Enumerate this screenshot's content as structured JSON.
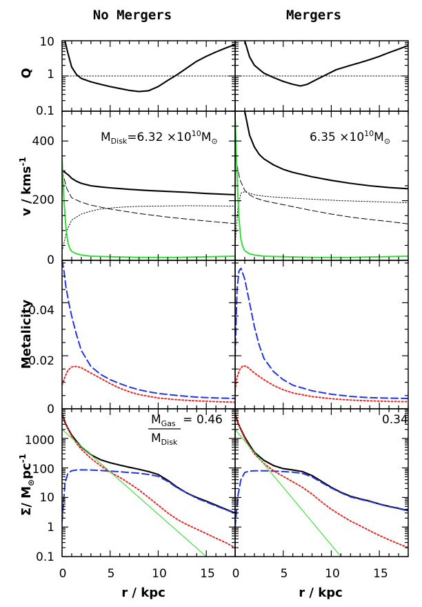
{
  "columns": {
    "left": "No Mergers",
    "right": "Mergers"
  },
  "x_axis": {
    "label": "r / kpc",
    "ticks": [
      "0",
      "5",
      "10",
      "15"
    ]
  },
  "annotations": {
    "mdisk_prefix": "M",
    "mdisk_sub": "Disk",
    "mdisk_left_value": "=6.32 ×10",
    "mdisk_right_value": "6.35 ×10",
    "mdisk_exp": "10",
    "msun_m": "M",
    "sun_symbol": "⊙",
    "ratio_num_m": "M",
    "ratio_num_sub": "Gas",
    "ratio_den_m": "M",
    "ratio_den_sub": "Disk",
    "ratio_eq": "=",
    "ratio_left": "0.46",
    "ratio_right": "0.34"
  },
  "rows": {
    "q": {
      "label": "Q",
      "ticks": [
        "10",
        "1",
        "0.1"
      ]
    },
    "v": {
      "label": "v / kms",
      "label_sup": "-1",
      "ticks": [
        "400",
        "200",
        "0"
      ]
    },
    "met": {
      "label": "Metalicity",
      "ticks": [
        "0.04",
        "0.02",
        "0"
      ]
    },
    "sigma": {
      "label": "Σ/ M",
      "label_sun": "⊙",
      "label_rest": "pc",
      "label_sup": "-1",
      "ticks": [
        "1000",
        "100",
        "10",
        "1",
        "0.1"
      ]
    }
  },
  "colors": {
    "black": "#000000",
    "green": "#33dd33",
    "blue": "#2233dd",
    "red": "#ee2222"
  },
  "chart_data": [
    {
      "type": "line",
      "panel": "Q",
      "column": "No Mergers",
      "ylabel": "Q",
      "xlabel": "r / kpc",
      "xlim": [
        0,
        18
      ],
      "ylim": [
        0.1,
        10
      ],
      "yscale": "log",
      "series": [
        {
          "style": "solid",
          "color": "#000000",
          "x": [
            0.3,
            0.6,
            1,
            1.5,
            2,
            3,
            4,
            5,
            6,
            7,
            8,
            9,
            10,
            11,
            12,
            13,
            14,
            15,
            16,
            17,
            18
          ],
          "y": [
            10,
            4.5,
            1.8,
            1.1,
            0.85,
            0.68,
            0.58,
            0.5,
            0.44,
            0.39,
            0.36,
            0.38,
            0.5,
            0.75,
            1.1,
            1.7,
            2.6,
            3.6,
            4.8,
            6.2,
            7.8
          ]
        },
        {
          "style": "dotted",
          "color": "#000000",
          "x": [
            0,
            18
          ],
          "y": [
            1,
            1
          ]
        }
      ]
    },
    {
      "type": "line",
      "panel": "Q",
      "column": "Mergers",
      "ylabel": "Q",
      "xlabel": "r / kpc",
      "xlim": [
        0,
        18
      ],
      "ylim": [
        0.1,
        10
      ],
      "yscale": "log",
      "series": [
        {
          "style": "solid",
          "color": "#000000",
          "x": [
            1,
            1.5,
            2,
            3,
            4,
            5,
            6,
            6.8,
            7.5,
            8.5,
            9.5,
            10.5,
            12,
            13,
            14,
            15,
            16,
            17,
            18
          ],
          "y": [
            10,
            3.5,
            2.0,
            1.2,
            0.9,
            0.7,
            0.58,
            0.52,
            0.58,
            0.8,
            1.1,
            1.5,
            2.0,
            2.4,
            2.9,
            3.6,
            4.6,
            5.8,
            7.3
          ]
        },
        {
          "style": "dotted",
          "color": "#000000",
          "x": [
            0,
            18
          ],
          "y": [
            1,
            1
          ]
        }
      ]
    },
    {
      "type": "line",
      "panel": "v",
      "column": "No Mergers",
      "ylabel": "v / kms-1",
      "xlabel": "r / kpc",
      "xlim": [
        0,
        18
      ],
      "ylim": [
        0,
        500
      ],
      "series": [
        {
          "style": "solid",
          "color": "#000000",
          "x": [
            0,
            0.3,
            0.7,
            1,
            1.5,
            2,
            3,
            4,
            5,
            7,
            9,
            11,
            13,
            15,
            18
          ],
          "y": [
            300,
            295,
            285,
            275,
            265,
            258,
            250,
            246,
            243,
            238,
            234,
            231,
            228,
            224,
            220
          ]
        },
        {
          "style": "dashed",
          "color": "#000000",
          "x": [
            0,
            0.5,
            1,
            2,
            3,
            5,
            8,
            11,
            14,
            18
          ],
          "y": [
            300,
            240,
            210,
            195,
            185,
            172,
            157,
            145,
            135,
            123
          ]
        },
        {
          "style": "dotted",
          "color": "#000000",
          "x": [
            0,
            0.5,
            1,
            2,
            3,
            4,
            6,
            8,
            10,
            13,
            18
          ],
          "y": [
            30,
            100,
            135,
            155,
            165,
            172,
            178,
            181,
            182,
            183,
            182
          ]
        },
        {
          "style": "solid",
          "color": "#33dd33",
          "x": [
            0,
            0.2,
            0.4,
            0.6,
            0.8,
            1,
            1.5,
            2,
            3,
            5,
            8,
            12,
            18
          ],
          "y": [
            340,
            200,
            110,
            60,
            40,
            30,
            22,
            18,
            14,
            12,
            10,
            10,
            14
          ]
        }
      ]
    },
    {
      "type": "line",
      "panel": "v",
      "column": "Mergers",
      "ylabel": "v / kms-1",
      "xlabel": "r / kpc",
      "xlim": [
        0,
        18
      ],
      "ylim": [
        0,
        500
      ],
      "series": [
        {
          "style": "solid",
          "color": "#000000",
          "x": [
            1,
            1.5,
            2,
            2.5,
            3,
            4,
            5,
            6,
            8,
            10,
            12,
            14,
            16,
            18
          ],
          "y": [
            500,
            420,
            380,
            355,
            340,
            320,
            305,
            295,
            280,
            268,
            258,
            250,
            244,
            240
          ]
        },
        {
          "style": "dashed",
          "color": "#000000",
          "x": [
            0,
            0.5,
            1,
            1.5,
            2,
            3,
            4,
            6,
            8,
            10,
            12,
            14,
            16,
            18
          ],
          "y": [
            350,
            270,
            235,
            220,
            210,
            200,
            193,
            180,
            167,
            155,
            145,
            137,
            130,
            122
          ]
        },
        {
          "style": "dotted",
          "color": "#000000",
          "x": [
            0,
            0.3,
            0.6,
            1,
            1.5,
            2,
            3,
            5,
            8,
            11,
            14,
            18
          ],
          "y": [
            50,
            180,
            225,
            230,
            225,
            220,
            215,
            210,
            205,
            200,
            197,
            193
          ]
        },
        {
          "style": "solid",
          "color": "#33dd33",
          "x": [
            0,
            0.2,
            0.4,
            0.6,
            0.8,
            1,
            1.5,
            2,
            3,
            5,
            8,
            12,
            18
          ],
          "y": [
            480,
            280,
            140,
            70,
            45,
            32,
            22,
            18,
            14,
            12,
            10,
            10,
            14
          ]
        }
      ]
    },
    {
      "type": "line",
      "panel": "Metalicity",
      "column": "No Mergers",
      "ylabel": "Metalicity",
      "xlabel": "r / kpc",
      "xlim": [
        0,
        18
      ],
      "ylim": [
        0,
        0.056
      ],
      "series": [
        {
          "style": "dashed",
          "color": "#2233dd",
          "x": [
            0,
            0.2,
            0.4,
            0.7,
            1,
            1.5,
            2,
            3,
            4,
            5,
            6,
            7,
            8,
            9,
            10,
            12,
            14,
            16,
            18
          ],
          "y": [
            0.056,
            0.052,
            0.046,
            0.04,
            0.035,
            0.028,
            0.022,
            0.016,
            0.013,
            0.011,
            0.0095,
            0.0082,
            0.0072,
            0.0064,
            0.0058,
            0.005,
            0.0044,
            0.0041,
            0.0039
          ]
        },
        {
          "style": "dotted",
          "color": "#ee2222",
          "x": [
            0,
            0.3,
            0.6,
            1,
            1.5,
            2,
            3,
            4,
            5,
            6,
            7,
            8,
            10,
            12,
            14,
            16,
            18
          ],
          "y": [
            0.009,
            0.012,
            0.0145,
            0.0158,
            0.016,
            0.0155,
            0.0135,
            0.0115,
            0.0095,
            0.0078,
            0.0064,
            0.0054,
            0.0041,
            0.0034,
            0.003,
            0.0027,
            0.0025
          ]
        }
      ]
    },
    {
      "type": "line",
      "panel": "Metalicity",
      "column": "Mergers",
      "ylabel": "Metalicity",
      "xlabel": "r / kpc",
      "xlim": [
        0,
        18
      ],
      "ylim": [
        0,
        0.056
      ],
      "series": [
        {
          "style": "dashed",
          "color": "#2233dd",
          "x": [
            0,
            0.2,
            0.4,
            0.6,
            1,
            1.5,
            2,
            2.5,
            3,
            4,
            5,
            6,
            8,
            10,
            12,
            14,
            16,
            18
          ],
          "y": [
            0.02,
            0.045,
            0.052,
            0.053,
            0.049,
            0.04,
            0.031,
            0.024,
            0.019,
            0.014,
            0.011,
            0.0089,
            0.0068,
            0.0055,
            0.0047,
            0.0042,
            0.004,
            0.0039
          ]
        },
        {
          "style": "dotted",
          "color": "#ee2222",
          "x": [
            0,
            0.2,
            0.5,
            0.8,
            1.2,
            1.6,
            2,
            3,
            4,
            5,
            6,
            8,
            10,
            12,
            14,
            16,
            18
          ],
          "y": [
            0.007,
            0.012,
            0.015,
            0.0162,
            0.016,
            0.0148,
            0.0135,
            0.011,
            0.0088,
            0.0072,
            0.006,
            0.0046,
            0.0038,
            0.0033,
            0.003,
            0.0028,
            0.0027
          ]
        }
      ]
    },
    {
      "type": "line",
      "panel": "Sigma",
      "column": "No Mergers",
      "ylabel": "Σ/ M⊙pc-1",
      "xlabel": "r / kpc",
      "xlim": [
        0,
        18
      ],
      "ylim": [
        0.1,
        10000
      ],
      "yscale": "log",
      "series": [
        {
          "style": "solid",
          "color": "#000000",
          "x": [
            0,
            0.3,
            0.6,
            1,
            1.5,
            2,
            3,
            4,
            5,
            6,
            7,
            8,
            9,
            10,
            11,
            12,
            13,
            14,
            15,
            16,
            17,
            18
          ],
          "y": [
            7000,
            3500,
            2200,
            1300,
            800,
            520,
            280,
            190,
            150,
            125,
            105,
            90,
            75,
            60,
            38,
            22,
            14,
            10,
            7.5,
            5.5,
            4,
            3
          ]
        },
        {
          "style": "dashed",
          "color": "#2233dd",
          "x": [
            0,
            0.3,
            0.6,
            1,
            1.5,
            2,
            3,
            4,
            5,
            6,
            7,
            8,
            9,
            10,
            11,
            12,
            13,
            14,
            15,
            16,
            17,
            18
          ],
          "y": [
            1.5,
            30,
            65,
            80,
            85,
            86,
            85,
            82,
            78,
            74,
            70,
            66,
            60,
            52,
            35,
            21,
            14,
            9.5,
            7,
            5.2,
            3.9,
            2.9
          ]
        },
        {
          "style": "dotted",
          "color": "#ee2222",
          "x": [
            0,
            0.3,
            0.6,
            1,
            1.5,
            2,
            3,
            4,
            5,
            6,
            7,
            8,
            9,
            10,
            11,
            12,
            13,
            14,
            15,
            16,
            17,
            18
          ],
          "y": [
            7000,
            3400,
            2100,
            1200,
            680,
            430,
            210,
            120,
            72,
            48,
            30,
            18,
            10,
            5.5,
            3,
            1.8,
            1.2,
            0.85,
            0.6,
            0.42,
            0.3,
            0.2
          ]
        },
        {
          "style": "solid",
          "color": "#33dd33",
          "x": [
            0,
            15
          ],
          "y": [
            2000,
            0.1
          ]
        }
      ]
    },
    {
      "type": "line",
      "panel": "Sigma",
      "column": "Mergers",
      "ylabel": "Σ/ M⊙pc-1",
      "xlabel": "r / kpc",
      "xlim": [
        0,
        18
      ],
      "ylim": [
        0.1,
        10000
      ],
      "yscale": "log",
      "series": [
        {
          "style": "solid",
          "color": "#000000",
          "x": [
            0,
            0.3,
            0.6,
            1,
            1.5,
            2,
            3,
            4,
            5,
            6,
            7,
            8,
            9,
            10,
            11,
            12,
            13,
            14,
            15,
            16,
            17,
            18
          ],
          "y": [
            7000,
            3300,
            2000,
            1100,
            600,
            340,
            180,
            120,
            95,
            85,
            75,
            55,
            35,
            22,
            15,
            11,
            9,
            7.5,
            6,
            5,
            4.3,
            3.6
          ]
        },
        {
          "style": "dashed",
          "color": "#2233dd",
          "x": [
            0,
            0.3,
            0.6,
            1,
            1.5,
            2,
            3,
            4,
            5,
            6,
            7,
            8,
            9,
            10,
            11,
            12,
            13,
            14,
            15,
            16,
            17,
            18
          ],
          "y": [
            1,
            12,
            40,
            70,
            78,
            80,
            80,
            78,
            75,
            72,
            65,
            50,
            32,
            21,
            14.5,
            10.5,
            8.7,
            7.3,
            5.9,
            4.9,
            4.2,
            3.5
          ]
        },
        {
          "style": "dotted",
          "color": "#ee2222",
          "x": [
            0,
            0.3,
            0.6,
            1,
            1.5,
            2,
            3,
            4,
            5,
            6,
            7,
            8,
            9,
            10,
            11,
            12,
            13,
            14,
            15,
            16,
            17,
            18
          ],
          "y": [
            7000,
            3200,
            1900,
            1000,
            520,
            300,
            140,
            80,
            52,
            34,
            22,
            13,
            7,
            4,
            2.5,
            1.6,
            1.1,
            0.75,
            0.52,
            0.37,
            0.27,
            0.2
          ]
        },
        {
          "style": "solid",
          "color": "#33dd33",
          "x": [
            0,
            11
          ],
          "y": [
            2000,
            0.1
          ]
        }
      ]
    }
  ]
}
